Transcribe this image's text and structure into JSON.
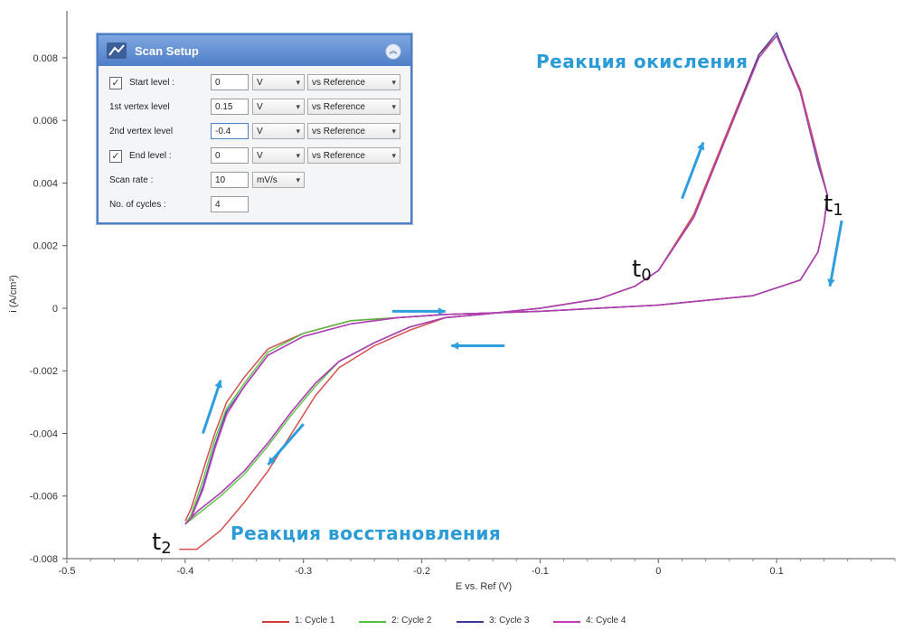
{
  "chart_data": {
    "type": "line",
    "xlabel": "E vs. Ref (V)",
    "ylabel": "i (A/cm²)",
    "xlim": [
      -0.5,
      0.2
    ],
    "ylim": [
      -0.008,
      0.0095
    ],
    "x_ticks": [
      "-0.5",
      "-0.4",
      "-0.3",
      "-0.2",
      "-0.1",
      "0",
      "0.1"
    ],
    "x_tick_values": [
      -0.5,
      -0.4,
      -0.3,
      -0.2,
      -0.1,
      0,
      0.1
    ],
    "y_ticks": [
      "-0.008",
      "-0.006",
      "-0.004",
      "-0.002",
      "0",
      "0.002",
      "0.004",
      "0.006",
      "0.008"
    ],
    "y_tick_values": [
      -0.008,
      -0.006,
      -0.004,
      -0.002,
      0,
      0.002,
      0.004,
      0.006,
      0.008
    ],
    "series": [
      {
        "name": "1: Cycle 1",
        "color": "#d23a3a",
        "x": [
          -0.4,
          -0.395,
          -0.385,
          -0.375,
          -0.365,
          -0.35,
          -0.33,
          -0.3,
          -0.26,
          -0.22,
          -0.18,
          -0.1,
          0,
          0.08,
          0.12,
          0.135,
          0.14,
          0.142,
          0.143,
          0.135,
          0.12,
          0.1,
          0.085,
          0.06,
          0.03,
          0,
          -0.02,
          -0.05,
          -0.1,
          -0.15,
          -0.18,
          -0.21,
          -0.24,
          -0.27,
          -0.29,
          -0.31,
          -0.33,
          -0.35,
          -0.37,
          -0.39,
          -0.405
        ],
        "y": [
          -0.0068,
          -0.0064,
          -0.0052,
          -0.004,
          -0.003,
          -0.0022,
          -0.0013,
          -0.0008,
          -0.0004,
          -0.0003,
          -0.0002,
          -0.0001,
          0.0001,
          0.0004,
          0.0009,
          0.0018,
          0.0027,
          0.0033,
          0.0036,
          0.0048,
          0.007,
          0.0087,
          0.0081,
          0.0058,
          0.003,
          0.0012,
          0.0007,
          0.0003,
          0.0,
          -0.0002,
          -0.0003,
          -0.0007,
          -0.0012,
          -0.0019,
          -0.0028,
          -0.004,
          -0.0052,
          -0.0062,
          -0.0071,
          -0.0077,
          -0.0077
        ]
      },
      {
        "name": "2: Cycle 2",
        "color": "#4ec23a",
        "x": [
          -0.4,
          -0.395,
          -0.385,
          -0.375,
          -0.365,
          -0.35,
          -0.33,
          -0.3,
          -0.26,
          -0.22,
          -0.18,
          -0.1,
          0,
          0.08,
          0.12,
          0.135,
          0.14,
          0.142,
          0.143,
          0.135,
          0.12,
          0.1,
          0.085,
          0.06,
          0.03,
          0,
          -0.02,
          -0.05,
          -0.1,
          -0.15,
          -0.18,
          -0.21,
          -0.24,
          -0.27,
          -0.29,
          -0.31,
          -0.33,
          -0.35,
          -0.37,
          -0.39,
          -0.4
        ],
        "y": [
          -0.0069,
          -0.0066,
          -0.0055,
          -0.0042,
          -0.0032,
          -0.0024,
          -0.0014,
          -0.0008,
          -0.0004,
          -0.0003,
          -0.0002,
          -0.0001,
          0.0001,
          0.0004,
          0.0009,
          0.0018,
          0.0027,
          0.0033,
          0.0036,
          0.0047,
          0.0069,
          0.0087,
          0.008,
          0.0057,
          0.0029,
          0.0012,
          0.0007,
          0.0003,
          0.0,
          -0.0002,
          -0.0003,
          -0.0006,
          -0.0011,
          -0.0017,
          -0.0025,
          -0.0034,
          -0.0044,
          -0.0053,
          -0.006,
          -0.0066,
          -0.0069
        ]
      },
      {
        "name": "3: Cycle 3",
        "color": "#3a3a9e",
        "x": [
          -0.4,
          -0.395,
          -0.385,
          -0.375,
          -0.365,
          -0.35,
          -0.33,
          -0.3,
          -0.26,
          -0.22,
          -0.18,
          -0.1,
          0,
          0.08,
          0.12,
          0.135,
          0.14,
          0.142,
          0.143,
          0.135,
          0.12,
          0.1,
          0.085,
          0.06,
          0.03,
          0,
          -0.02,
          -0.05,
          -0.1,
          -0.15,
          -0.18,
          -0.21,
          -0.24,
          -0.27,
          -0.29,
          -0.31,
          -0.33,
          -0.35,
          -0.37,
          -0.39,
          -0.4
        ],
        "y": [
          -0.0069,
          -0.0067,
          -0.0057,
          -0.0044,
          -0.0033,
          -0.0025,
          -0.0015,
          -0.0009,
          -0.0005,
          -0.0003,
          -0.0002,
          -0.0001,
          0.0001,
          0.0004,
          0.0009,
          0.0018,
          0.0027,
          0.0033,
          0.0036,
          0.0046,
          0.0069,
          0.0088,
          0.0081,
          0.0057,
          0.0029,
          0.0012,
          0.0007,
          0.0003,
          0.0,
          -0.0002,
          -0.0003,
          -0.0006,
          -0.0011,
          -0.0017,
          -0.0024,
          -0.0033,
          -0.0043,
          -0.0052,
          -0.0059,
          -0.0065,
          -0.0069
        ]
      },
      {
        "name": "4: Cycle 4",
        "color": "#c43ab8",
        "x": [
          -0.4,
          -0.395,
          -0.385,
          -0.375,
          -0.365,
          -0.35,
          -0.33,
          -0.3,
          -0.26,
          -0.22,
          -0.18,
          -0.1,
          0,
          0.08,
          0.12,
          0.135,
          0.14,
          0.142,
          0.143,
          0.135,
          0.12,
          0.1,
          0.085,
          0.06,
          0.03,
          0,
          -0.02,
          -0.05,
          -0.1,
          -0.15,
          -0.18,
          -0.21,
          -0.24,
          -0.27,
          -0.29,
          -0.31,
          -0.33,
          -0.35,
          -0.37,
          -0.39,
          -0.4
        ],
        "y": [
          -0.0069,
          -0.0067,
          -0.0058,
          -0.0045,
          -0.0034,
          -0.0025,
          -0.0015,
          -0.0009,
          -0.0005,
          -0.0003,
          -0.0002,
          -0.0001,
          0.0001,
          0.0004,
          0.0009,
          0.0018,
          0.0027,
          0.0033,
          0.0036,
          0.0047,
          0.0069,
          0.0087,
          0.008,
          0.0057,
          0.0029,
          0.0012,
          0.0007,
          0.0003,
          0.0,
          -0.0002,
          -0.0003,
          -0.0006,
          -0.0011,
          -0.0017,
          -0.0024,
          -0.0033,
          -0.0043,
          -0.0052,
          -0.0059,
          -0.0065,
          -0.0069
        ]
      }
    ],
    "annotations": [
      {
        "id": "ox",
        "text": "Реакция окисления"
      },
      {
        "id": "red",
        "text": "Реакция восстановления"
      },
      {
        "id": "t0",
        "text": "t",
        "sub": "0",
        "x": -0.025,
        "y": 0.0012
      },
      {
        "id": "t1",
        "text": "t",
        "sub": "1",
        "x": 0.142,
        "y": 0.0036
      },
      {
        "id": "t2",
        "text": "t",
        "sub": "2",
        "x": -0.42,
        "y": -0.0075
      }
    ],
    "legend_position": "bottom"
  },
  "scan_setup": {
    "title": "Scan Setup",
    "collapse_icon": "chevron-up-icon",
    "rows": [
      {
        "label": "Start level :",
        "checked": true,
        "value": "0",
        "unit": "V",
        "ref": "vs Reference"
      },
      {
        "label": "1st vertex level",
        "value": "0.15",
        "unit": "V",
        "ref": "vs Reference"
      },
      {
        "label": "2nd vertex level",
        "value": "-0.4",
        "unit": "V",
        "ref": "vs Reference"
      },
      {
        "label": "End level :",
        "checked": true,
        "value": "0",
        "unit": "V",
        "ref": "vs Reference"
      },
      {
        "label": "Scan rate :",
        "value": "10",
        "unit": "mV/s"
      },
      {
        "label": "No. of cycles :",
        "value": "4"
      }
    ],
    "check_mark": "✓",
    "dropdown_arrow": "▾"
  },
  "arrow_color": "#2f9ee0"
}
